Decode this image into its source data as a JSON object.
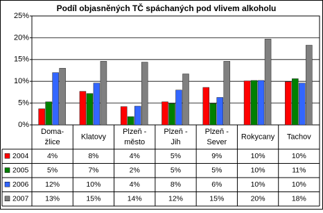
{
  "chart_data": {
    "type": "bar",
    "title": "Podíl objasněných TČ spáchaných pod vlivem alkoholu",
    "categories": [
      [
        "Doma-",
        "žlice"
      ],
      [
        "Klatovy"
      ],
      [
        "Plzeň -",
        "město"
      ],
      [
        "Plzeň -",
        "Jih"
      ],
      [
        "Plzeň -",
        "Sever"
      ],
      [
        "Rokycany"
      ],
      [
        "Tachov"
      ]
    ],
    "series": [
      {
        "name": "2004",
        "color": "#ff0000",
        "values": [
          3.7,
          7.7,
          4.2,
          5.3,
          8.6,
          10.1,
          9.9
        ],
        "value_labels": [
          "4%",
          "8%",
          "4%",
          "5%",
          "9%",
          "10%",
          "10%"
        ]
      },
      {
        "name": "2005",
        "color": "#008000",
        "values": [
          5.3,
          7.2,
          1.9,
          4.9,
          4.9,
          10.2,
          10.6
        ],
        "value_labels": [
          "5%",
          "7%",
          "2%",
          "5%",
          "5%",
          "10%",
          "11%"
        ]
      },
      {
        "name": "2006",
        "color": "#3366ff",
        "values": [
          12.0,
          9.6,
          4.3,
          8.0,
          6.3,
          10.2,
          9.6
        ],
        "value_labels": [
          "12%",
          "10%",
          "4%",
          "8%",
          "6%",
          "10%",
          "10%"
        ]
      },
      {
        "name": "2007",
        "color": "#808080",
        "values": [
          13.0,
          14.6,
          14.4,
          11.7,
          14.6,
          19.7,
          18.3
        ],
        "value_labels": [
          "13%",
          "15%",
          "14%",
          "12%",
          "15%",
          "20%",
          "18%"
        ]
      }
    ],
    "ylim": [
      0,
      25
    ],
    "yticks": [
      {
        "value": 0,
        "label": "0%"
      },
      {
        "value": 5,
        "label": "5%"
      },
      {
        "value": 10,
        "label": "10%"
      },
      {
        "value": 15,
        "label": "15%"
      },
      {
        "value": 20,
        "label": "20%"
      },
      {
        "value": 25,
        "label": "25%"
      }
    ],
    "grid": true
  }
}
